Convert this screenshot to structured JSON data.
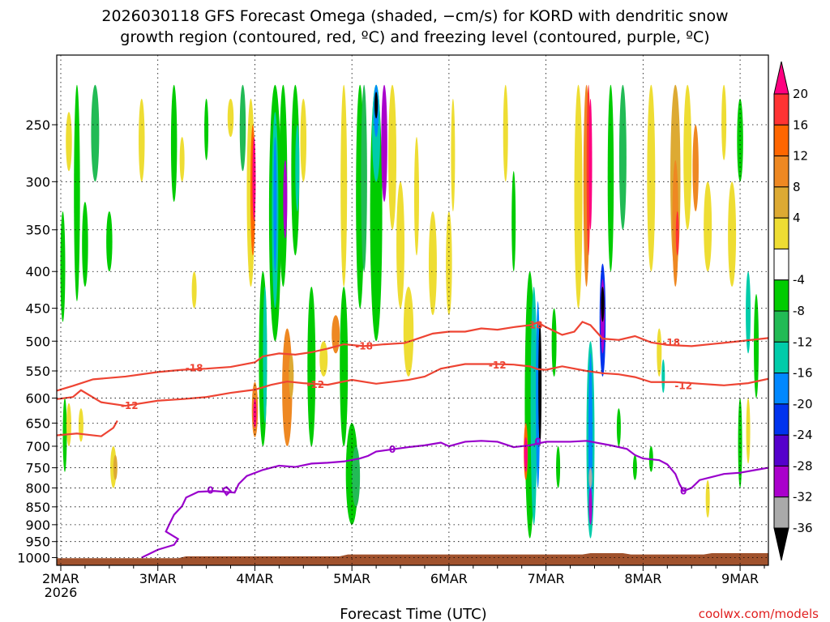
{
  "header": {
    "title_line1": "2026030118 GFS Forecast Omega (shaded, −cm/s) for KORD with dendritic snow",
    "title_line2": "growth region (contoured, red, ºC) and freezing level (contoured, purple, ºC)"
  },
  "footer": {
    "xlabel": "Forecast Time (UTC)",
    "credit": "coolwx.com/models"
  },
  "colors": {
    "dgz_contour": "#ee4433",
    "freezing_contour": "#9900cc",
    "ground": "#a0522d"
  },
  "chart_data": {
    "type": "heatmap",
    "x_ticks": [
      {
        "value": 0,
        "label": "2MAR",
        "sublabel": "2026"
      },
      {
        "value": 24,
        "label": "3MAR",
        "sublabel": ""
      },
      {
        "value": 48,
        "label": "4MAR",
        "sublabel": ""
      },
      {
        "value": 72,
        "label": "5MAR",
        "sublabel": ""
      },
      {
        "value": 96,
        "label": "6MAR",
        "sublabel": ""
      },
      {
        "value": 120,
        "label": "7MAR",
        "sublabel": ""
      },
      {
        "value": 144,
        "label": "8MAR",
        "sublabel": ""
      },
      {
        "value": 168,
        "label": "9MAR",
        "sublabel": ""
      }
    ],
    "xlim": [
      -1,
      175
    ],
    "y_ticks_labeled": [
      250,
      300,
      350,
      400,
      450,
      500,
      550,
      600,
      650,
      700,
      750,
      800,
      850,
      900,
      950,
      1000
    ],
    "ylim": [
      200,
      1025
    ],
    "y_scale": "log",
    "grid": true,
    "colorbar": {
      "labels": [
        "20",
        "16",
        "12",
        "8",
        "4",
        "-4",
        "-8",
        "-12",
        "-16",
        "-20",
        "-24",
        "-28",
        "-32",
        "-36"
      ],
      "colors": [
        "#ff0080",
        "#ff3333",
        "#ff6600",
        "#ee8822",
        "#ddaa33",
        "#eedd33",
        "#ffffff",
        "#00cc00",
        "#22bb55",
        "#00ccaa",
        "#0088ff",
        "#0033ee",
        "#5500cc",
        "#aa00cc",
        "#aaaaaa",
        "#000000"
      ]
    },
    "dgz_contours": [
      {
        "label": "-18",
        "points": [
          [
            -1,
            586
          ],
          [
            3,
            577
          ],
          [
            8,
            565
          ],
          [
            16,
            560
          ],
          [
            24,
            552
          ],
          [
            30,
            548
          ],
          [
            36,
            546
          ],
          [
            42,
            543
          ],
          [
            48,
            535
          ],
          [
            50,
            525
          ],
          [
            54,
            520
          ],
          [
            58,
            522
          ],
          [
            62,
            518
          ],
          [
            66,
            512
          ],
          [
            70,
            505
          ],
          [
            75,
            508
          ],
          [
            80,
            505
          ],
          [
            85,
            503
          ],
          [
            92,
            488
          ],
          [
            96,
            485
          ],
          [
            100,
            485
          ],
          [
            104,
            480
          ],
          [
            108,
            482
          ],
          [
            112,
            478
          ],
          [
            116,
            475
          ],
          [
            118,
            471
          ],
          [
            120,
            478
          ],
          [
            124,
            490
          ],
          [
            127,
            485
          ],
          [
            129,
            470
          ],
          [
            131,
            475
          ],
          [
            134,
            496
          ],
          [
            138,
            498
          ],
          [
            142,
            492
          ],
          [
            146,
            502
          ],
          [
            150,
            506
          ],
          [
            156,
            508
          ],
          [
            162,
            504
          ],
          [
            168,
            500
          ],
          [
            175,
            495
          ]
        ],
        "labels_at": [
          [
            33,
            545
          ],
          [
            75,
            508
          ],
          [
            117,
            475
          ],
          [
            151,
            502
          ]
        ]
      },
      {
        "label": "-12",
        "points": [
          [
            -1,
            602
          ],
          [
            3,
            598
          ],
          [
            5,
            585
          ],
          [
            10,
            608
          ],
          [
            16,
            615
          ],
          [
            24,
            605
          ],
          [
            30,
            602
          ],
          [
            36,
            598
          ],
          [
            42,
            590
          ],
          [
            48,
            584
          ],
          [
            52,
            575
          ],
          [
            56,
            569
          ],
          [
            60,
            572
          ],
          [
            66,
            575
          ],
          [
            72,
            566
          ],
          [
            78,
            573
          ],
          [
            86,
            566
          ],
          [
            90,
            560
          ],
          [
            94,
            546
          ],
          [
            100,
            538
          ],
          [
            108,
            538
          ],
          [
            112,
            539
          ],
          [
            116,
            542
          ],
          [
            118,
            547
          ],
          [
            120,
            548
          ],
          [
            124,
            542
          ],
          [
            130,
            550
          ],
          [
            134,
            554
          ],
          [
            138,
            556
          ],
          [
            142,
            561
          ],
          [
            146,
            570
          ],
          [
            152,
            570
          ],
          [
            158,
            573
          ],
          [
            164,
            576
          ],
          [
            170,
            572
          ],
          [
            175,
            564
          ]
        ],
        "labels_at": [
          [
            17,
            615
          ],
          [
            63,
            575
          ],
          [
            108,
            540
          ],
          [
            154,
            577
          ]
        ]
      },
      {
        "label": "",
        "points": [
          [
            -1,
            676
          ],
          [
            4,
            672
          ],
          [
            10,
            678
          ],
          [
            13,
            660
          ],
          [
            14,
            645
          ]
        ]
      }
    ],
    "freezing_contours": [
      {
        "label": "0",
        "points": [
          [
            20,
            1000
          ],
          [
            24,
            975
          ],
          [
            28,
            960
          ],
          [
            29,
            942
          ],
          [
            26,
            920
          ],
          [
            27,
            895
          ],
          [
            28,
            872
          ],
          [
            30,
            848
          ],
          [
            31,
            825
          ],
          [
            34,
            810
          ],
          [
            38,
            808
          ],
          [
            43,
            812
          ],
          [
            44,
            790
          ],
          [
            46,
            770
          ],
          [
            50,
            755
          ],
          [
            54,
            745
          ],
          [
            58,
            748
          ],
          [
            62,
            740
          ],
          [
            66,
            738
          ],
          [
            70,
            735
          ],
          [
            74,
            728
          ],
          [
            76,
            722
          ],
          [
            78,
            712
          ],
          [
            82,
            707
          ],
          [
            86,
            702
          ],
          [
            90,
            698
          ],
          [
            94,
            692
          ],
          [
            96,
            700
          ],
          [
            100,
            690
          ],
          [
            104,
            688
          ],
          [
            108,
            690
          ],
          [
            112,
            702
          ],
          [
            116,
            698
          ],
          [
            120,
            690
          ],
          [
            126,
            690
          ],
          [
            130,
            688
          ],
          [
            136,
            698
          ],
          [
            140,
            706
          ],
          [
            142,
            720
          ],
          [
            144,
            728
          ],
          [
            148,
            732
          ],
          [
            150,
            742
          ],
          [
            152,
            765
          ],
          [
            153,
            790
          ],
          [
            154,
            808
          ],
          [
            156,
            800
          ],
          [
            158,
            780
          ],
          [
            164,
            765
          ],
          [
            168,
            762
          ],
          [
            172,
            755
          ],
          [
            175,
            750
          ]
        ],
        "labels_at": [
          [
            82,
            707
          ],
          [
            118,
            690
          ],
          [
            154,
            808
          ],
          [
            37,
            806
          ]
        ]
      },
      {
        "label": "",
        "points": [
          [
            40,
            803
          ],
          [
            41,
            798
          ],
          [
            42,
            808
          ],
          [
            41,
            818
          ],
          [
            40,
            803
          ]
        ]
      }
    ]
  }
}
